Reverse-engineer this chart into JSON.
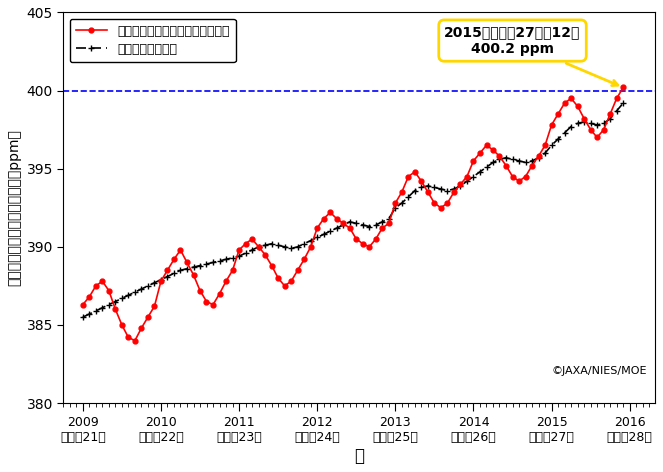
{
  "title": "",
  "xlabel": "年",
  "ylabel": "二酸化炭素の全大気平均濃度（ppm）",
  "ylim": [
    380,
    405
  ],
  "xlim": [
    2008.75,
    2016.33
  ],
  "dashed_line_y": 400,
  "dashed_line_color": "#0000FF",
  "annotation_text": "2015年（平成27年）12月\n400.2 ppm",
  "annotation_box_color": "#FFD700",
  "copyright_text": "©JAXA/NIES/MOE",
  "xticks": [
    2009,
    2010,
    2011,
    2012,
    2013,
    2014,
    2015,
    2016
  ],
  "xtick_labels": [
    "2009\n（平成21）",
    "2010\n（平成22）",
    "2011\n（平成23）",
    "2012\n（平成24）",
    "2013\n（平成25）",
    "2014\n（平成26）",
    "2015\n（平成27）",
    "2016\n（平成28）"
  ],
  "yticks": [
    380,
    385,
    390,
    395,
    400,
    405
  ],
  "legend_monthly": "月別二酸化炭素の全大気平均濃度",
  "legend_annual": "推定経年平均濃度",
  "monthly_color": "#FF0000",
  "annual_color": "#000000",
  "monthly_x": [
    2009.0,
    2009.083,
    2009.167,
    2009.25,
    2009.333,
    2009.417,
    2009.5,
    2009.583,
    2009.667,
    2009.75,
    2009.833,
    2009.917,
    2010.0,
    2010.083,
    2010.167,
    2010.25,
    2010.333,
    2010.417,
    2010.5,
    2010.583,
    2010.667,
    2010.75,
    2010.833,
    2010.917,
    2011.0,
    2011.083,
    2011.167,
    2011.25,
    2011.333,
    2011.417,
    2011.5,
    2011.583,
    2011.667,
    2011.75,
    2011.833,
    2011.917,
    2012.0,
    2012.083,
    2012.167,
    2012.25,
    2012.333,
    2012.417,
    2012.5,
    2012.583,
    2012.667,
    2012.75,
    2012.833,
    2012.917,
    2013.0,
    2013.083,
    2013.167,
    2013.25,
    2013.333,
    2013.417,
    2013.5,
    2013.583,
    2013.667,
    2013.75,
    2013.833,
    2013.917,
    2014.0,
    2014.083,
    2014.167,
    2014.25,
    2014.333,
    2014.417,
    2014.5,
    2014.583,
    2014.667,
    2014.75,
    2014.833,
    2014.917,
    2015.0,
    2015.083,
    2015.167,
    2015.25,
    2015.333,
    2015.417,
    2015.5,
    2015.583,
    2015.667,
    2015.75,
    2015.833,
    2015.917
  ],
  "monthly_y": [
    386.3,
    386.8,
    387.5,
    387.8,
    387.2,
    386.0,
    385.0,
    384.2,
    384.0,
    384.8,
    385.5,
    386.2,
    387.8,
    388.5,
    389.2,
    389.8,
    389.0,
    388.2,
    387.2,
    386.5,
    386.3,
    387.0,
    387.8,
    388.5,
    389.8,
    390.2,
    390.5,
    390.0,
    389.5,
    388.8,
    388.0,
    387.5,
    387.8,
    388.5,
    389.2,
    390.0,
    391.2,
    391.8,
    392.2,
    391.8,
    391.5,
    391.2,
    390.5,
    390.2,
    390.0,
    390.5,
    391.2,
    391.5,
    392.8,
    393.5,
    394.5,
    394.8,
    394.2,
    393.5,
    392.8,
    392.5,
    392.8,
    393.5,
    394.0,
    394.5,
    395.5,
    396.0,
    396.5,
    396.2,
    395.8,
    395.2,
    394.5,
    394.2,
    394.5,
    395.2,
    395.8,
    396.5,
    397.8,
    398.5,
    399.2,
    399.5,
    399.0,
    398.2,
    397.5,
    397.0,
    397.5,
    398.5,
    399.5,
    400.2
  ],
  "annual_x": [
    2009.0,
    2009.083,
    2009.167,
    2009.25,
    2009.333,
    2009.417,
    2009.5,
    2009.583,
    2009.667,
    2009.75,
    2009.833,
    2009.917,
    2010.0,
    2010.083,
    2010.167,
    2010.25,
    2010.333,
    2010.417,
    2010.5,
    2010.583,
    2010.667,
    2010.75,
    2010.833,
    2010.917,
    2011.0,
    2011.083,
    2011.167,
    2011.25,
    2011.333,
    2011.417,
    2011.5,
    2011.583,
    2011.667,
    2011.75,
    2011.833,
    2011.917,
    2012.0,
    2012.083,
    2012.167,
    2012.25,
    2012.333,
    2012.417,
    2012.5,
    2012.583,
    2012.667,
    2012.75,
    2012.833,
    2012.917,
    2013.0,
    2013.083,
    2013.167,
    2013.25,
    2013.333,
    2013.417,
    2013.5,
    2013.583,
    2013.667,
    2013.75,
    2013.833,
    2013.917,
    2014.0,
    2014.083,
    2014.167,
    2014.25,
    2014.333,
    2014.417,
    2014.5,
    2014.583,
    2014.667,
    2014.75,
    2014.833,
    2014.917,
    2015.0,
    2015.083,
    2015.167,
    2015.25,
    2015.333,
    2015.417,
    2015.5,
    2015.583,
    2015.667,
    2015.75,
    2015.833,
    2015.917
  ],
  "annual_y": [
    385.5,
    385.7,
    385.9,
    386.1,
    386.3,
    386.5,
    386.7,
    386.9,
    387.1,
    387.3,
    387.5,
    387.7,
    387.9,
    388.1,
    388.3,
    388.5,
    388.6,
    388.7,
    388.8,
    388.9,
    389.0,
    389.1,
    389.2,
    389.3,
    389.4,
    389.6,
    389.8,
    390.0,
    390.1,
    390.2,
    390.1,
    390.0,
    389.9,
    390.0,
    390.2,
    390.4,
    390.6,
    390.8,
    391.0,
    391.2,
    391.4,
    391.6,
    391.5,
    391.4,
    391.3,
    391.4,
    391.6,
    391.8,
    392.5,
    392.8,
    393.2,
    393.6,
    393.8,
    393.9,
    393.8,
    393.7,
    393.6,
    393.7,
    393.9,
    394.2,
    394.5,
    394.8,
    395.1,
    395.4,
    395.6,
    395.7,
    395.6,
    395.5,
    395.4,
    395.5,
    395.7,
    396.0,
    396.5,
    396.9,
    397.3,
    397.7,
    397.9,
    398.0,
    397.9,
    397.8,
    397.9,
    398.2,
    398.7,
    399.2
  ]
}
